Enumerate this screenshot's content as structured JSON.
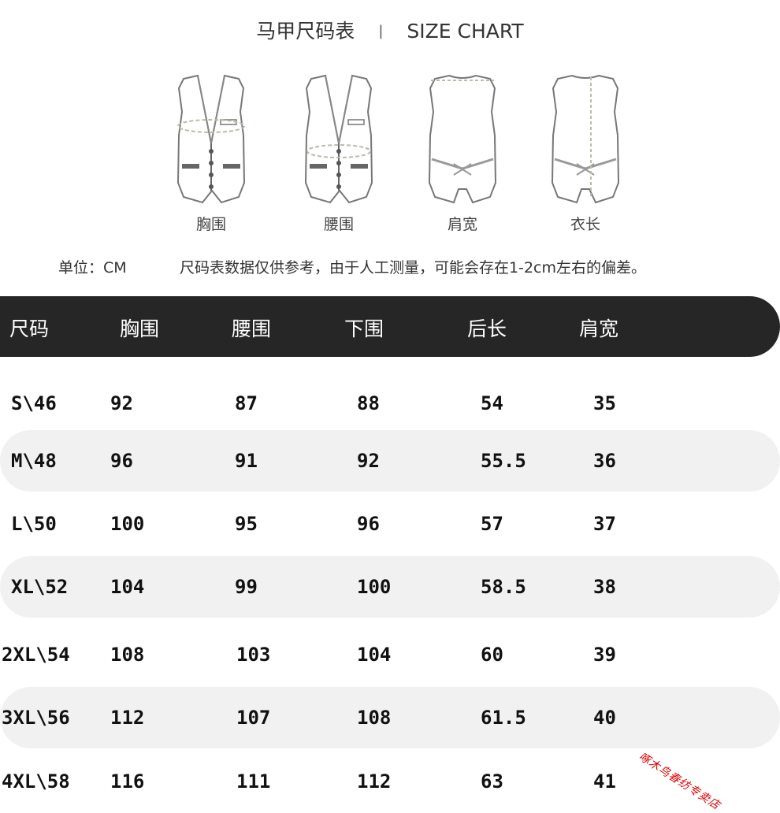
{
  "title": {
    "cn": "马甲尺码表",
    "separator": "|",
    "en": "SIZE CHART"
  },
  "diagrams": [
    {
      "label": "胸围"
    },
    {
      "label": "腰围"
    },
    {
      "label": "肩宽"
    },
    {
      "label": "衣长"
    }
  ],
  "unit": {
    "label": "单位：CM",
    "note": "尺码表数据仅供参考，由于人工测量，可能会存在1-2cm左右的偏差。"
  },
  "table": {
    "headers": [
      "尺码",
      "胸围",
      "腰围",
      "下围",
      "后长",
      "肩宽"
    ],
    "rows": [
      [
        "S\\46",
        "92",
        "87",
        "88",
        "54",
        "35"
      ],
      [
        "M\\48",
        "96",
        "91",
        "92",
        "55.5",
        "36"
      ],
      [
        "L\\50",
        "100",
        "95",
        "96",
        "57",
        "37"
      ],
      [
        "XL\\52",
        "104",
        "99",
        "100",
        "58.5",
        "38"
      ],
      [
        "2XL\\54",
        "108",
        "103",
        "104",
        "60",
        "39"
      ],
      [
        "3XL\\56",
        "112",
        "107",
        "108",
        "61.5",
        "40"
      ],
      [
        "4XL\\58",
        "116",
        "111",
        "112",
        "63",
        "41"
      ]
    ]
  },
  "watermark": "啄木鸟春纺专卖店",
  "colors": {
    "header_bg": "#262626",
    "band_bg": "#f1f1f1",
    "watermark": "#e00000"
  }
}
